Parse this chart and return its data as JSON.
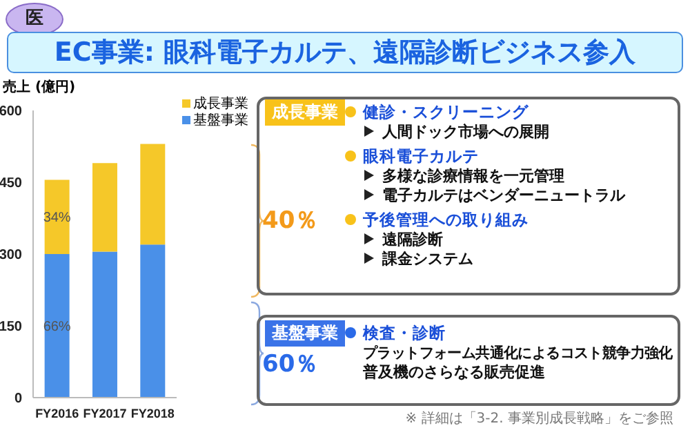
{
  "chart_data": {
    "type": "bar",
    "title": "EC事業: 眼科電子カルテ、遠隔診断ビジネス参入",
    "ylabel": "売上 (億円)",
    "categories": [
      "FY2016",
      "FY2017",
      "FY2018"
    ],
    "stacked": true,
    "series": [
      {
        "name": "基盤事業",
        "color": "#4a90e8",
        "values": [
          300,
          305,
          320
        ]
      },
      {
        "name": "成長事業",
        "color": "#f5c829",
        "values": [
          155,
          185,
          210
        ]
      }
    ],
    "ylim": [
      0,
      600
    ],
    "yticks": [
      0,
      150,
      300,
      450,
      600
    ],
    "grid": false,
    "legend": "top right",
    "annotations": [
      "医",
      "40％",
      "成長事業",
      "健診・スクリーニング",
      "人間ドック市場への展開",
      "眼科電子カルテ",
      "多様な診療情報を一元管理",
      "電子カルテはベンダーニュートラル",
      "予後管理への取り組み",
      "遠隔診断",
      "課金システム",
      "基盤事業",
      "60％",
      "検査・診断",
      "プラットフォーム共通化によるコスト競争力強化",
      "普及機のさらなる販売促進",
      "※ 詳細は「3-2. 事業別成長戦略」をご参照",
      "34%",
      "66%"
    ]
  }
}
